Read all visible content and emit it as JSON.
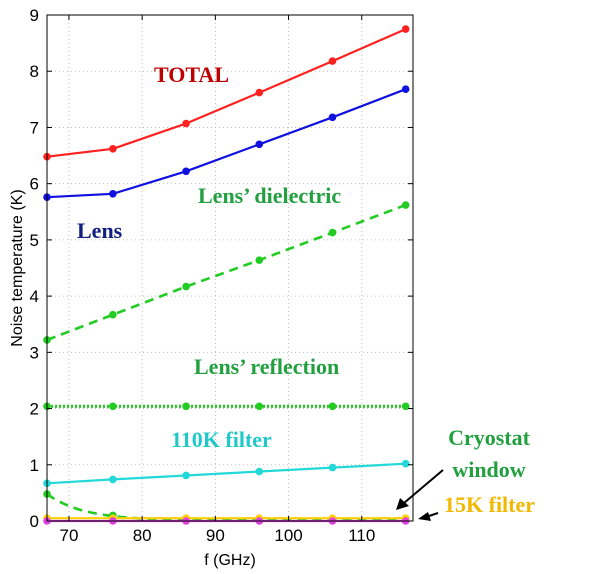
{
  "chart_data": {
    "type": "line",
    "xlabel": "f (GHz)",
    "ylabel": "Noise temperature (K)",
    "xlim": [
      67,
      117
    ],
    "ylim": [
      0,
      9
    ],
    "xticks": [
      70,
      80,
      90,
      100,
      110
    ],
    "yticks": [
      0,
      1,
      2,
      3,
      4,
      5,
      6,
      7,
      8,
      9
    ],
    "grid": "dotted",
    "x": [
      67,
      76,
      86,
      96,
      106,
      116
    ],
    "series": [
      {
        "name": "TOTAL",
        "color": "#ff2020",
        "style": "solid",
        "values": [
          6.48,
          6.62,
          7.07,
          7.62,
          8.18,
          8.75
        ]
      },
      {
        "name": "Lens",
        "color": "#1010e0",
        "style": "solid",
        "values": [
          5.76,
          5.82,
          6.22,
          6.7,
          7.18,
          7.68
        ]
      },
      {
        "name": "Lens’ dielectric",
        "color": "#22cc22",
        "style": "dashed",
        "values": [
          3.22,
          3.67,
          4.17,
          4.64,
          5.13,
          5.62
        ]
      },
      {
        "name": "Lens’ reflection",
        "color": "#22cc22",
        "style": "dotted",
        "values": [
          2.04,
          2.04,
          2.04,
          2.04,
          2.04,
          2.04
        ]
      },
      {
        "name": "110K filter",
        "color": "#22d8d8",
        "style": "solid",
        "values": [
          0.67,
          0.74,
          0.81,
          0.88,
          0.95,
          1.02
        ]
      },
      {
        "name": "Cryostat window",
        "color": "#22cc22",
        "style": "dashed",
        "values": [
          0.48,
          0.1,
          0.02,
          0.01,
          0.01,
          0.01
        ]
      },
      {
        "name": "15K filter",
        "color": "#ffd000",
        "style": "solid",
        "values": [
          0.05,
          0.05,
          0.05,
          0.05,
          0.05,
          0.05
        ]
      },
      {
        "name": "",
        "color": "#e040e0",
        "style": "solid",
        "values": [
          0.0,
          0.0,
          0.0,
          0.0,
          0.0,
          0.0
        ]
      }
    ],
    "annotations": [
      {
        "text": "TOTAL",
        "color": "#c00000"
      },
      {
        "text": "Lens",
        "color": "#102080"
      },
      {
        "text": "Lens’ dielectric",
        "color": "#22a040"
      },
      {
        "text": "Lens’ reflection",
        "color": "#22a040"
      },
      {
        "text": "110K filter",
        "color": "#22c8c8"
      },
      {
        "text": "Cryostat",
        "color": "#22a040"
      },
      {
        "text": "window",
        "color": "#22a040"
      },
      {
        "text": "15K filter",
        "color": "#f0b800"
      }
    ]
  }
}
